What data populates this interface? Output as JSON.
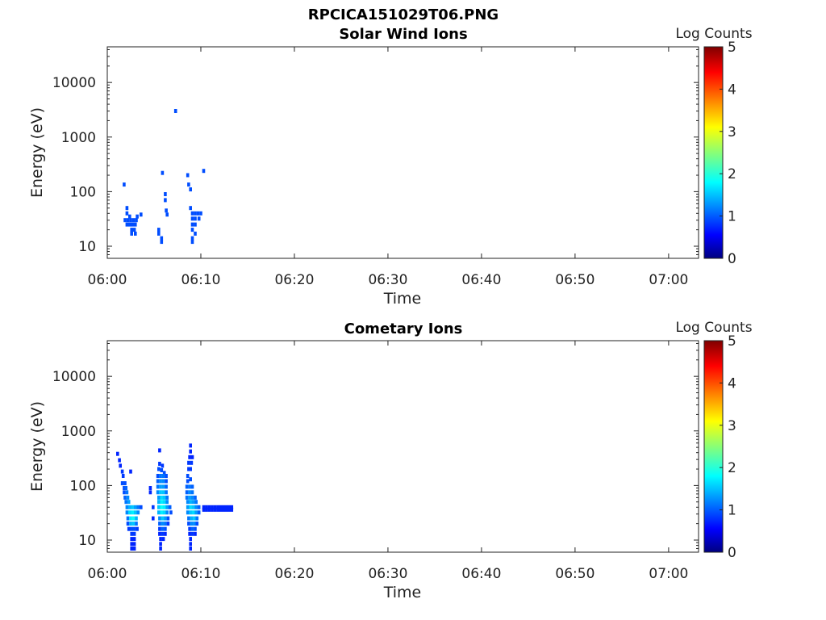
{
  "figure_title": "RPCICA151029T06.PNG",
  "chart_data": [
    {
      "type": "heatmap",
      "title": "Solar Wind Ions",
      "xlabel": "Time",
      "ylabel": "Energy (eV)",
      "x_ticks": [
        "06:00",
        "06:10",
        "06:20",
        "06:30",
        "06:40",
        "06:50",
        "07:00"
      ],
      "xlim_minutes": [
        0,
        63.2
      ],
      "yscale": "log",
      "ylim": [
        6,
        45000
      ],
      "y_ticks": [
        "10",
        "100",
        "1000",
        "10000"
      ],
      "colorbar": {
        "label": "Log Counts",
        "range": [
          0,
          5
        ],
        "ticks": [
          "0",
          "1",
          "2",
          "3",
          "4",
          "5"
        ],
        "colormap": "jet"
      },
      "cells": [
        [
          1.8,
          135,
          1
        ],
        [
          2.1,
          50,
          1
        ],
        [
          2.1,
          40,
          1
        ],
        [
          1.9,
          30,
          1
        ],
        [
          2.2,
          30,
          1
        ],
        [
          2.5,
          30,
          1
        ],
        [
          2.8,
          30,
          1
        ],
        [
          3.1,
          30,
          1
        ],
        [
          2.1,
          25,
          1
        ],
        [
          2.4,
          25,
          1
        ],
        [
          2.7,
          25,
          1
        ],
        [
          3.0,
          25,
          1
        ],
        [
          2.6,
          20,
          1
        ],
        [
          2.9,
          20,
          1
        ],
        [
          2.6,
          17,
          1
        ],
        [
          3.0,
          17,
          1
        ],
        [
          2.4,
          35,
          1
        ],
        [
          3.2,
          35,
          1
        ],
        [
          3.6,
          38,
          1
        ],
        [
          5.5,
          20,
          1
        ],
        [
          5.5,
          17,
          1
        ],
        [
          5.8,
          14,
          1
        ],
        [
          5.8,
          12,
          1
        ],
        [
          5.9,
          220,
          1
        ],
        [
          6.2,
          90,
          1
        ],
        [
          6.2,
          70,
          1
        ],
        [
          6.3,
          45,
          1
        ],
        [
          6.4,
          38,
          1
        ],
        [
          7.3,
          3000,
          1
        ],
        [
          8.6,
          200,
          1
        ],
        [
          8.7,
          135,
          1
        ],
        [
          8.9,
          110,
          1
        ],
        [
          8.9,
          50,
          1
        ],
        [
          9.1,
          40,
          1
        ],
        [
          9.4,
          40,
          1
        ],
        [
          9.7,
          40,
          1
        ],
        [
          10.0,
          40,
          1
        ],
        [
          9.1,
          32,
          1
        ],
        [
          9.4,
          32,
          1
        ],
        [
          9.8,
          32,
          1
        ],
        [
          9.1,
          25,
          1
        ],
        [
          9.4,
          25,
          1
        ],
        [
          9.1,
          20,
          1
        ],
        [
          9.4,
          17,
          1
        ],
        [
          9.1,
          14,
          1
        ],
        [
          9.1,
          12,
          1
        ],
        [
          10.3,
          240,
          1
        ]
      ]
    },
    {
      "type": "heatmap",
      "title": "Cometary Ions",
      "xlabel": "Time",
      "ylabel": "Energy (eV)",
      "x_ticks": [
        "06:00",
        "06:10",
        "06:20",
        "06:30",
        "06:40",
        "06:50",
        "07:00"
      ],
      "xlim_minutes": [
        0,
        63.2
      ],
      "yscale": "log",
      "ylim": [
        6,
        45000
      ],
      "y_ticks": [
        "10",
        "100",
        "1000",
        "10000"
      ],
      "colorbar": {
        "label": "Log Counts",
        "range": [
          0,
          5
        ],
        "ticks": [
          "0",
          "1",
          "2",
          "3",
          "4",
          "5"
        ],
        "colormap": "jet"
      },
      "cells": [
        [
          1.1,
          380,
          0.8
        ],
        [
          1.3,
          290,
          0.8
        ],
        [
          1.4,
          230,
          0.8
        ],
        [
          1.6,
          180,
          0.9
        ],
        [
          1.7,
          150,
          0.9
        ],
        [
          1.6,
          110,
          1
        ],
        [
          1.9,
          110,
          1
        ],
        [
          1.8,
          90,
          1
        ],
        [
          2.0,
          90,
          1.1
        ],
        [
          1.8,
          75,
          1
        ],
        [
          2.1,
          75,
          1.2
        ],
        [
          1.9,
          60,
          1.1
        ],
        [
          2.2,
          60,
          1.3
        ],
        [
          2.0,
          50,
          1.2
        ],
        [
          2.3,
          50,
          1.4
        ],
        [
          2.1,
          40,
          1.3
        ],
        [
          2.4,
          40,
          1.5
        ],
        [
          2.7,
          40,
          1.6
        ],
        [
          3.0,
          40,
          1.4
        ],
        [
          3.3,
          40,
          1.2
        ],
        [
          3.6,
          40,
          1
        ],
        [
          2.1,
          32,
          1.3
        ],
        [
          2.4,
          32,
          1.7
        ],
        [
          2.7,
          32,
          1.8
        ],
        [
          3.0,
          32,
          1.6
        ],
        [
          3.3,
          32,
          1.3
        ],
        [
          2.2,
          25,
          1.2
        ],
        [
          2.5,
          25,
          1.8
        ],
        [
          2.8,
          25,
          1.9
        ],
        [
          3.1,
          25,
          1.5
        ],
        [
          2.2,
          20,
          1
        ],
        [
          2.5,
          20,
          1.5
        ],
        [
          2.8,
          20,
          1.6
        ],
        [
          3.1,
          20,
          1.2
        ],
        [
          2.3,
          16,
          0.9
        ],
        [
          2.6,
          16,
          1
        ],
        [
          2.9,
          16,
          1
        ],
        [
          3.2,
          16,
          0.9
        ],
        [
          2.6,
          13,
          0.9
        ],
        [
          2.9,
          13,
          0.9
        ],
        [
          2.6,
          10.5,
          0.8
        ],
        [
          2.9,
          10.5,
          0.8
        ],
        [
          2.6,
          8.5,
          0.8
        ],
        [
          2.9,
          8.5,
          0.8
        ],
        [
          2.6,
          7,
          0.8
        ],
        [
          2.9,
          7,
          0.8
        ],
        [
          2.5,
          180,
          0.8
        ],
        [
          4.6,
          90,
          0.8
        ],
        [
          4.6,
          75,
          0.8
        ],
        [
          4.9,
          40,
          0.9
        ],
        [
          4.9,
          25,
          0.8
        ],
        [
          5.6,
          440,
          0.8
        ],
        [
          5.6,
          250,
          0.9
        ],
        [
          5.9,
          230,
          0.9
        ],
        [
          5.5,
          200,
          1
        ],
        [
          5.8,
          190,
          1
        ],
        [
          6.1,
          170,
          1
        ],
        [
          5.4,
          150,
          1
        ],
        [
          5.7,
          150,
          1.2
        ],
        [
          6.0,
          150,
          1.2
        ],
        [
          6.3,
          150,
          1
        ],
        [
          5.4,
          120,
          1.1
        ],
        [
          5.7,
          120,
          1.3
        ],
        [
          6.0,
          120,
          1.3
        ],
        [
          6.3,
          120,
          1
        ],
        [
          5.4,
          95,
          1.2
        ],
        [
          5.7,
          95,
          1.4
        ],
        [
          6.0,
          95,
          1.4
        ],
        [
          6.3,
          95,
          1.1
        ],
        [
          5.4,
          75,
          1.3
        ],
        [
          5.7,
          75,
          1.6
        ],
        [
          6.0,
          75,
          1.6
        ],
        [
          6.3,
          75,
          1.2
        ],
        [
          5.5,
          60,
          1.4
        ],
        [
          5.8,
          60,
          1.7
        ],
        [
          6.1,
          60,
          1.6
        ],
        [
          6.4,
          60,
          1.2
        ],
        [
          5.5,
          50,
          1.5
        ],
        [
          5.8,
          50,
          1.8
        ],
        [
          6.1,
          50,
          1.7
        ],
        [
          6.4,
          50,
          1.3
        ],
        [
          5.5,
          40,
          1.6
        ],
        [
          5.8,
          40,
          1.9
        ],
        [
          6.1,
          40,
          1.8
        ],
        [
          6.4,
          40,
          1.4
        ],
        [
          6.7,
          40,
          1.1
        ],
        [
          5.5,
          32,
          1.5
        ],
        [
          5.8,
          32,
          1.8
        ],
        [
          6.1,
          32,
          1.7
        ],
        [
          6.4,
          32,
          1.3
        ],
        [
          6.8,
          32,
          1
        ],
        [
          5.6,
          25,
          1.3
        ],
        [
          5.9,
          25,
          1.6
        ],
        [
          6.2,
          25,
          1.4
        ],
        [
          6.5,
          25,
          1
        ],
        [
          5.6,
          20,
          1.1
        ],
        [
          5.9,
          20,
          1.3
        ],
        [
          6.2,
          20,
          1.2
        ],
        [
          6.5,
          20,
          0.9
        ],
        [
          5.6,
          16,
          0.9
        ],
        [
          5.9,
          16,
          1.1
        ],
        [
          6.2,
          16,
          1
        ],
        [
          5.6,
          13,
          0.8
        ],
        [
          5.9,
          13,
          0.9
        ],
        [
          6.2,
          13,
          0.8
        ],
        [
          5.7,
          10.5,
          0.8
        ],
        [
          6.0,
          10.5,
          0.8
        ],
        [
          5.7,
          8.5,
          0.8
        ],
        [
          5.7,
          7,
          0.8
        ],
        [
          8.9,
          540,
          0.8
        ],
        [
          8.9,
          420,
          0.8
        ],
        [
          8.8,
          330,
          0.8
        ],
        [
          9.1,
          330,
          0.8
        ],
        [
          8.7,
          260,
          0.9
        ],
        [
          9.0,
          260,
          0.9
        ],
        [
          8.7,
          200,
          0.9
        ],
        [
          8.9,
          200,
          0.9
        ],
        [
          8.6,
          150,
          1
        ],
        [
          8.6,
          120,
          1
        ],
        [
          8.9,
          130,
          1
        ],
        [
          8.5,
          95,
          1.1
        ],
        [
          8.8,
          95,
          1.2
        ],
        [
          9.1,
          95,
          1.1
        ],
        [
          8.5,
          75,
          1.1
        ],
        [
          8.8,
          75,
          1.3
        ],
        [
          9.1,
          75,
          1.2
        ],
        [
          8.5,
          60,
          1.2
        ],
        [
          8.8,
          60,
          1.4
        ],
        [
          9.1,
          60,
          1.3
        ],
        [
          9.4,
          60,
          1.1
        ],
        [
          8.6,
          50,
          1.3
        ],
        [
          8.9,
          50,
          1.5
        ],
        [
          9.2,
          50,
          1.4
        ],
        [
          9.5,
          50,
          1.2
        ],
        [
          8.6,
          40,
          1.4
        ],
        [
          8.9,
          40,
          1.7
        ],
        [
          9.2,
          40,
          1.6
        ],
        [
          9.5,
          40,
          1.3
        ],
        [
          9.8,
          40,
          1.1
        ],
        [
          8.6,
          32,
          1.3
        ],
        [
          8.9,
          32,
          1.6
        ],
        [
          9.2,
          32,
          1.7
        ],
        [
          9.5,
          32,
          1.4
        ],
        [
          9.8,
          32,
          1.1
        ],
        [
          8.7,
          25,
          1.2
        ],
        [
          9.0,
          25,
          1.5
        ],
        [
          9.3,
          25,
          1.6
        ],
        [
          9.6,
          25,
          1.2
        ],
        [
          8.7,
          20,
          1
        ],
        [
          9.0,
          20,
          1.3
        ],
        [
          9.3,
          20,
          1.3
        ],
        [
          9.6,
          20,
          1
        ],
        [
          8.8,
          16,
          0.9
        ],
        [
          9.1,
          16,
          1.1
        ],
        [
          9.4,
          16,
          1
        ],
        [
          8.8,
          13,
          0.8
        ],
        [
          9.1,
          13,
          0.9
        ],
        [
          9.4,
          13,
          0.8
        ],
        [
          8.9,
          10.5,
          0.8
        ],
        [
          8.9,
          8.5,
          0.8
        ],
        [
          8.9,
          7,
          0.8
        ],
        [
          10.3,
          40,
          0.8
        ],
        [
          10.6,
          40,
          0.8
        ],
        [
          10.9,
          40,
          0.8
        ],
        [
          11.2,
          40,
          0.8
        ],
        [
          11.5,
          40,
          0.8
        ],
        [
          11.8,
          40,
          0.8
        ],
        [
          12.1,
          40,
          0.8
        ],
        [
          12.4,
          40,
          0.8
        ],
        [
          12.7,
          40,
          0.8
        ],
        [
          13.0,
          40,
          0.8
        ],
        [
          13.3,
          40,
          0.8
        ],
        [
          10.3,
          36,
          0.8
        ],
        [
          10.6,
          36,
          0.8
        ],
        [
          10.9,
          36,
          0.8
        ],
        [
          11.2,
          36,
          0.8
        ],
        [
          11.5,
          36,
          0.8
        ],
        [
          11.8,
          36,
          0.8
        ],
        [
          12.1,
          36,
          0.8
        ],
        [
          12.4,
          36,
          0.8
        ],
        [
          12.7,
          36,
          0.8
        ],
        [
          13.0,
          36,
          0.8
        ],
        [
          13.3,
          36,
          0.8
        ]
      ]
    }
  ]
}
